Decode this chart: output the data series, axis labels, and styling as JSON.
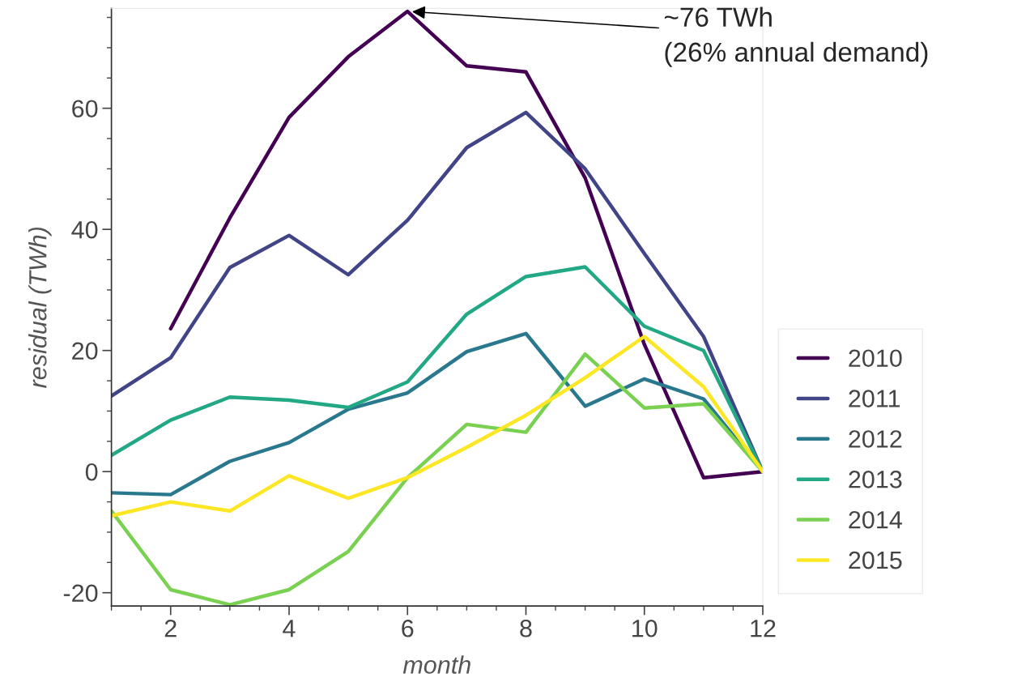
{
  "chart_data": {
    "type": "line",
    "xlabel": "month",
    "ylabel": "residual (TWh)",
    "xlim": [
      1,
      12
    ],
    "xticks": [
      2,
      4,
      6,
      8,
      10,
      12
    ],
    "ylim": [
      -22.2,
      76.5
    ],
    "yticks": [
      -20,
      0,
      20,
      40,
      60
    ],
    "grid": false,
    "legend": "right",
    "marker": "none",
    "line_style": "solid",
    "annotations": [
      {
        "text": "~76 TWh\n(26% annual demand)",
        "x": 6,
        "y": 76
      }
    ],
    "series": [
      {
        "name": "2010",
        "color": "#440154",
        "x": [
          2,
          3,
          4,
          5,
          6,
          7,
          8,
          9,
          10,
          11,
          12
        ],
        "values": [
          23.6,
          41.9,
          58.5,
          68.5,
          76,
          67,
          66,
          48.5,
          21,
          -1,
          0
        ]
      },
      {
        "name": "2011",
        "color": "#414487",
        "x": [
          1,
          2,
          3,
          4,
          5,
          6,
          7,
          8,
          9,
          10,
          11,
          12
        ],
        "values": [
          12.5,
          18.8,
          33.7,
          39,
          32.5,
          41.5,
          53.5,
          59.3,
          50,
          36,
          22.3,
          0
        ]
      },
      {
        "name": "2012",
        "color": "#2a788e",
        "x": [
          1,
          2,
          3,
          4,
          5,
          6,
          7,
          8,
          9,
          10,
          11,
          12
        ],
        "values": [
          -3.5,
          -3.8,
          1.7,
          4.8,
          10.3,
          13,
          19.8,
          22.8,
          10.8,
          15.3,
          12,
          0
        ]
      },
      {
        "name": "2013",
        "color": "#22a884",
        "x": [
          1,
          2,
          3,
          4,
          5,
          6,
          7,
          8,
          9,
          10,
          11,
          12
        ],
        "values": [
          2.7,
          8.5,
          12.3,
          11.8,
          10.6,
          14.8,
          26,
          32.2,
          33.8,
          24,
          20,
          0
        ]
      },
      {
        "name": "2014",
        "color": "#7ad151",
        "x": [
          1,
          2,
          3,
          4,
          5,
          6,
          7,
          8,
          9,
          10,
          11,
          12
        ],
        "values": [
          -6.5,
          -19.5,
          -22,
          -19.5,
          -13.2,
          -1,
          7.8,
          6.5,
          19.4,
          10.5,
          11.2,
          0
        ]
      },
      {
        "name": "2015",
        "color": "#fde725",
        "x": [
          1,
          2,
          3,
          4,
          5,
          6,
          7,
          8,
          9,
          10,
          11,
          12
        ],
        "values": [
          -7.3,
          -5,
          -6.5,
          -0.7,
          -4.4,
          -1,
          4,
          9.3,
          15.5,
          22.3,
          14,
          0
        ]
      }
    ]
  }
}
